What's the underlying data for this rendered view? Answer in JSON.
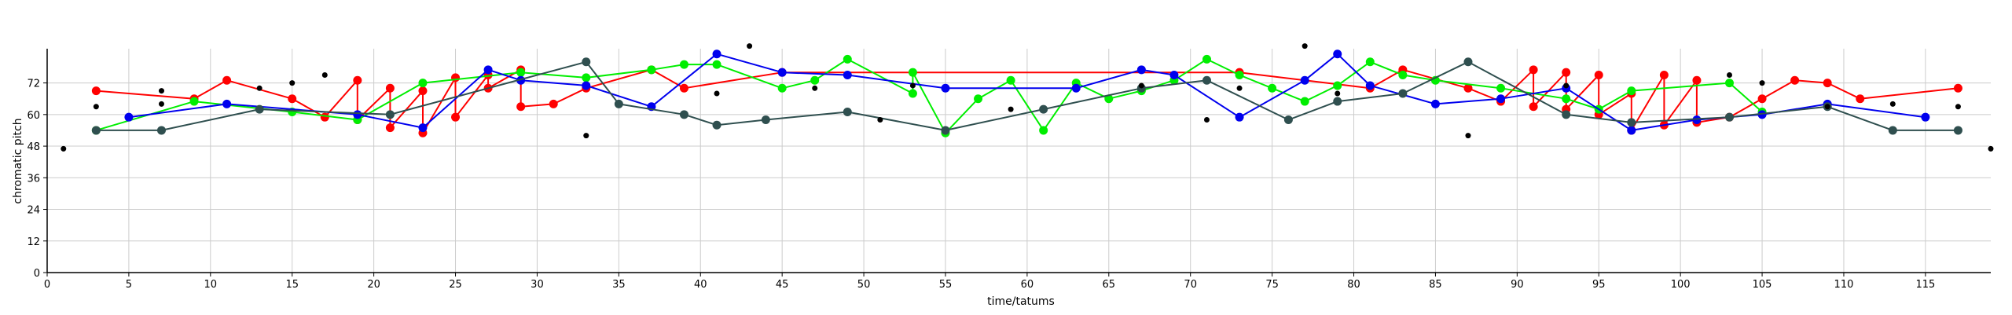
{
  "chart_data": {
    "type": "scatter",
    "title": "",
    "xlabel": "time/tatums",
    "ylabel": "chromatic pitch",
    "xlim": [
      0,
      119
    ],
    "ylim": [
      0,
      85
    ],
    "x_ticks": [
      0,
      5,
      10,
      15,
      20,
      25,
      30,
      35,
      40,
      45,
      50,
      55,
      60,
      65,
      70,
      75,
      80,
      85,
      90,
      95,
      100,
      105,
      110,
      115
    ],
    "y_ticks": [
      0,
      12,
      24,
      36,
      48,
      60,
      72
    ],
    "grid": true,
    "legend": "none",
    "colors": {
      "red": "#ff0000",
      "green": "#00ee00",
      "blue": "#0000ee",
      "dark": "#2f4f4f",
      "black": "#000000",
      "grid": "#cccccc"
    },
    "series": [
      {
        "color": "red",
        "mode": "lines+markers",
        "x": [
          3,
          9,
          11,
          15,
          17,
          19,
          19,
          21,
          21,
          23,
          23,
          25,
          25,
          27,
          27,
          29,
          29,
          31,
          33,
          37,
          39,
          45,
          73,
          81,
          83,
          87,
          89,
          91,
          91,
          93,
          93,
          95,
          95,
          97,
          97,
          99,
          99,
          101,
          101,
          103,
          105,
          107,
          109,
          111,
          117
        ],
        "y": [
          69,
          66,
          73,
          66,
          59,
          73,
          58,
          70,
          55,
          69,
          53,
          74,
          59,
          75,
          70,
          77,
          63,
          64,
          70,
          77,
          70,
          76,
          76,
          70,
          77,
          70,
          65,
          77,
          63,
          76,
          62,
          75,
          60,
          68,
          54,
          75,
          56,
          73,
          57,
          59,
          66,
          73,
          72,
          66,
          70
        ]
      },
      {
        "color": "green",
        "mode": "lines+markers",
        "x": [
          3,
          9,
          15,
          19,
          23,
          29,
          33,
          37,
          39,
          41,
          45,
          47,
          49,
          53,
          53,
          55,
          57,
          59,
          61,
          63,
          65,
          67,
          69,
          71,
          73,
          75,
          77,
          79,
          81,
          83,
          85,
          89,
          93,
          95,
          97,
          103,
          105
        ],
        "y": [
          54,
          65,
          61,
          58,
          72,
          76,
          74,
          77,
          79,
          79,
          70,
          73,
          81,
          68,
          76,
          53,
          66,
          73,
          54,
          72,
          66,
          69,
          73,
          81,
          75,
          70,
          65,
          71,
          80,
          75,
          73,
          70,
          66,
          62,
          69,
          72,
          61
        ]
      },
      {
        "color": "blue",
        "mode": "lines+markers",
        "x": [
          5,
          11,
          19,
          23,
          27,
          29,
          33,
          37,
          41,
          45,
          49,
          55,
          63,
          67,
          69,
          73,
          77,
          79,
          81,
          85,
          89,
          93,
          97,
          101,
          105,
          109,
          115
        ],
        "y": [
          59,
          64,
          60,
          55,
          77,
          73,
          71,
          63,
          83,
          76,
          75,
          70,
          70,
          77,
          75,
          59,
          73,
          83,
          71,
          64,
          66,
          70,
          54,
          58,
          60,
          64,
          59
        ]
      },
      {
        "color": "dark",
        "mode": "lines+markers",
        "x": [
          3,
          7,
          13,
          21,
          33,
          35,
          39,
          41,
          44,
          49,
          55,
          61,
          67,
          71,
          76,
          79,
          83,
          87,
          93,
          97,
          103,
          109,
          113,
          117
        ],
        "y": [
          54,
          54,
          62,
          60,
          80,
          64,
          60,
          56,
          58,
          61,
          54,
          62,
          70,
          73,
          58,
          65,
          68,
          80,
          60,
          57,
          59,
          63,
          54,
          54
        ]
      },
      {
        "color": "black",
        "mode": "markers",
        "x": [
          1,
          3,
          7,
          7,
          13,
          15,
          17,
          33,
          41,
          43,
          47,
          51,
          53,
          59,
          67,
          71,
          73,
          77,
          79,
          87,
          93,
          103,
          105,
          109,
          113,
          117,
          119
        ],
        "y": [
          47,
          63,
          69,
          64,
          70,
          72,
          75,
          52,
          68,
          86,
          70,
          58,
          71,
          62,
          71,
          58,
          70,
          86,
          68,
          52,
          71,
          75,
          72,
          63,
          64,
          63,
          47
        ]
      }
    ]
  }
}
